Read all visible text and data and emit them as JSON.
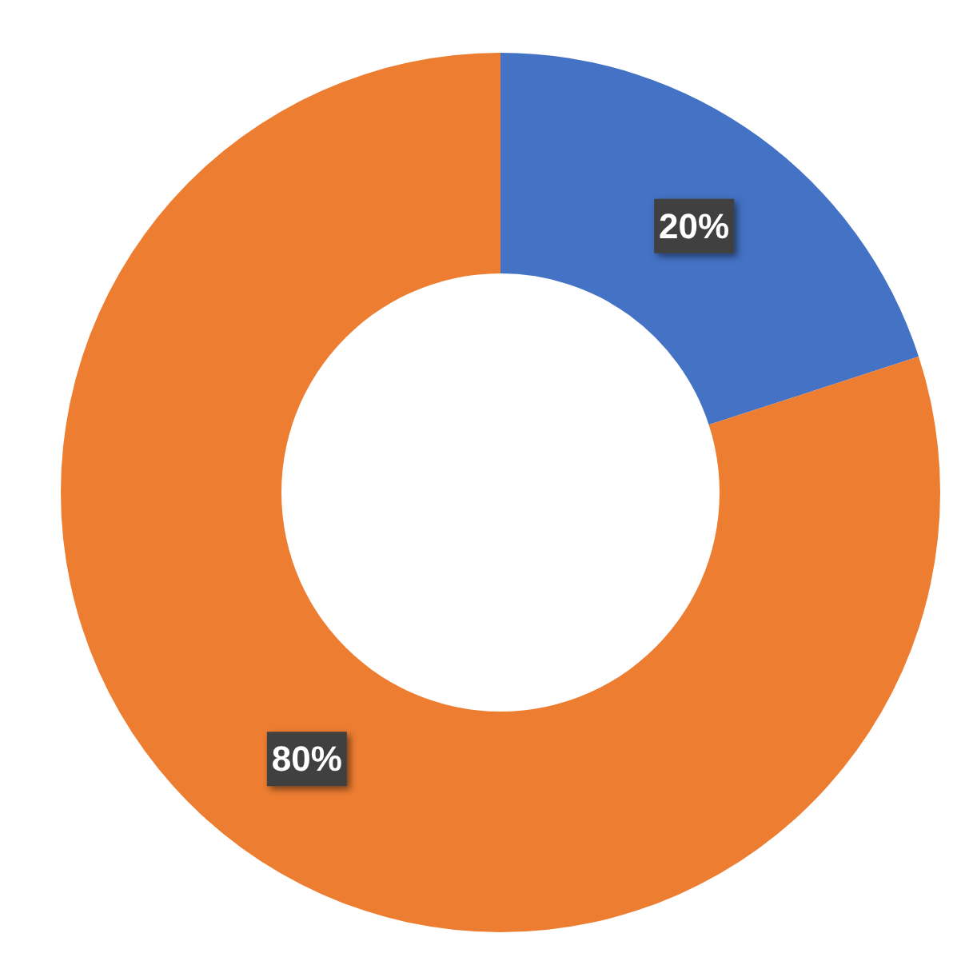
{
  "chart_data": {
    "type": "donut",
    "categories": [
      null,
      null
    ],
    "values": [
      20,
      80
    ],
    "colors": [
      "#4472c4",
      "#ed7d31"
    ],
    "value_labels": [
      "20%",
      "80%"
    ]
  }
}
